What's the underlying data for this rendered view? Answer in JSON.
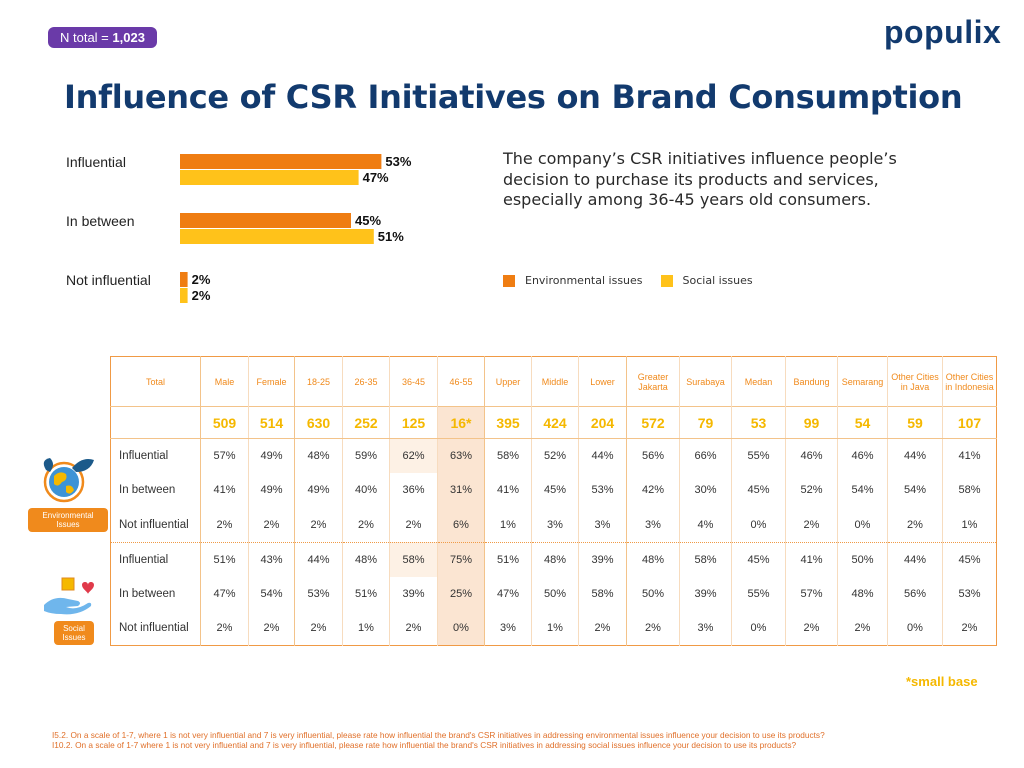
{
  "badge": {
    "prefix": "N total = ",
    "value": "1,023"
  },
  "logo": {
    "text": "populix"
  },
  "title": "Influence of CSR Initiatives on Brand Consumption",
  "summary": "The company’s CSR initiatives influence people’s decision to purchase its products and services, especially among 36-45 years old consumers.",
  "colors": {
    "environmental": "#ef7d12",
    "social": "#ffc21a",
    "brand": "#123a6e",
    "accent": "#f08a1c"
  },
  "chart_data": {
    "type": "bar",
    "orientation": "horizontal",
    "categories": [
      "Influential",
      "In between",
      "Not influential"
    ],
    "series": [
      {
        "name": "Environmental issues",
        "values": [
          53,
          45,
          2
        ]
      },
      {
        "name": "Social issues",
        "values": [
          47,
          51,
          2
        ]
      }
    ],
    "unit": "%",
    "legend": "right"
  },
  "table": {
    "header_total": "Total",
    "columns": [
      {
        "label": "Male",
        "base": "509"
      },
      {
        "label": "Female",
        "base": "514"
      },
      {
        "label": "18-25",
        "base": "630"
      },
      {
        "label": "26-35",
        "base": "252"
      },
      {
        "label": "36-45",
        "base": "125"
      },
      {
        "label": "46-55",
        "base": "16*"
      },
      {
        "label": "Upper",
        "base": "395"
      },
      {
        "label": "Middle",
        "base": "424"
      },
      {
        "label": "Lower",
        "base": "204"
      },
      {
        "label": "Greater Jakarta",
        "base": "572"
      },
      {
        "label": "Surabaya",
        "base": "79"
      },
      {
        "label": "Medan",
        "base": "53"
      },
      {
        "label": "Bandung",
        "base": "99"
      },
      {
        "label": "Semarang",
        "base": "54"
      },
      {
        "label": "Other Cities in Java",
        "base": "59"
      },
      {
        "label": "Other Cities in Indonesia",
        "base": "107"
      }
    ],
    "groups": [
      {
        "name": "Environmental Issues",
        "rows": [
          {
            "label": "Influential",
            "values": [
              "57%",
              "49%",
              "48%",
              "59%",
              "62%",
              "63%",
              "58%",
              "52%",
              "44%",
              "56%",
              "66%",
              "55%",
              "46%",
              "46%",
              "44%",
              "41%"
            ]
          },
          {
            "label": "In between",
            "values": [
              "41%",
              "49%",
              "49%",
              "40%",
              "36%",
              "31%",
              "41%",
              "45%",
              "53%",
              "42%",
              "30%",
              "45%",
              "52%",
              "54%",
              "54%",
              "58%"
            ]
          },
          {
            "label": "Not influential",
            "values": [
              "2%",
              "2%",
              "2%",
              "2%",
              "2%",
              "6%",
              "1%",
              "3%",
              "3%",
              "3%",
              "4%",
              "0%",
              "2%",
              "0%",
              "2%",
              "1%"
            ]
          }
        ]
      },
      {
        "name": "Social Issues",
        "rows": [
          {
            "label": "Influential",
            "values": [
              "51%",
              "43%",
              "44%",
              "48%",
              "58%",
              "75%",
              "51%",
              "48%",
              "39%",
              "48%",
              "58%",
              "45%",
              "41%",
              "50%",
              "44%",
              "45%"
            ]
          },
          {
            "label": "In between",
            "values": [
              "47%",
              "54%",
              "53%",
              "51%",
              "39%",
              "25%",
              "47%",
              "50%",
              "58%",
              "50%",
              "39%",
              "55%",
              "57%",
              "48%",
              "56%",
              "53%"
            ]
          },
          {
            "label": "Not influential",
            "values": [
              "2%",
              "2%",
              "2%",
              "1%",
              "2%",
              "0%",
              "3%",
              "1%",
              "2%",
              "2%",
              "3%",
              "0%",
              "2%",
              "2%",
              "0%",
              "2%"
            ]
          }
        ]
      }
    ]
  },
  "small_base_note": "*small base",
  "footnotes": [
    "I5.2. On a scale of 1-7, where 1 is not very influential and 7 is very influential, please rate how influential the brand's CSR initiatives in addressing environmental issues influence your decision to use its products?",
    "I10.2. On a scale of 1-7 where 1 is not very influential and 7 is very influential, please rate how influential the brand's CSR initiatives in addressing social issues influence your decision to use its products?"
  ]
}
